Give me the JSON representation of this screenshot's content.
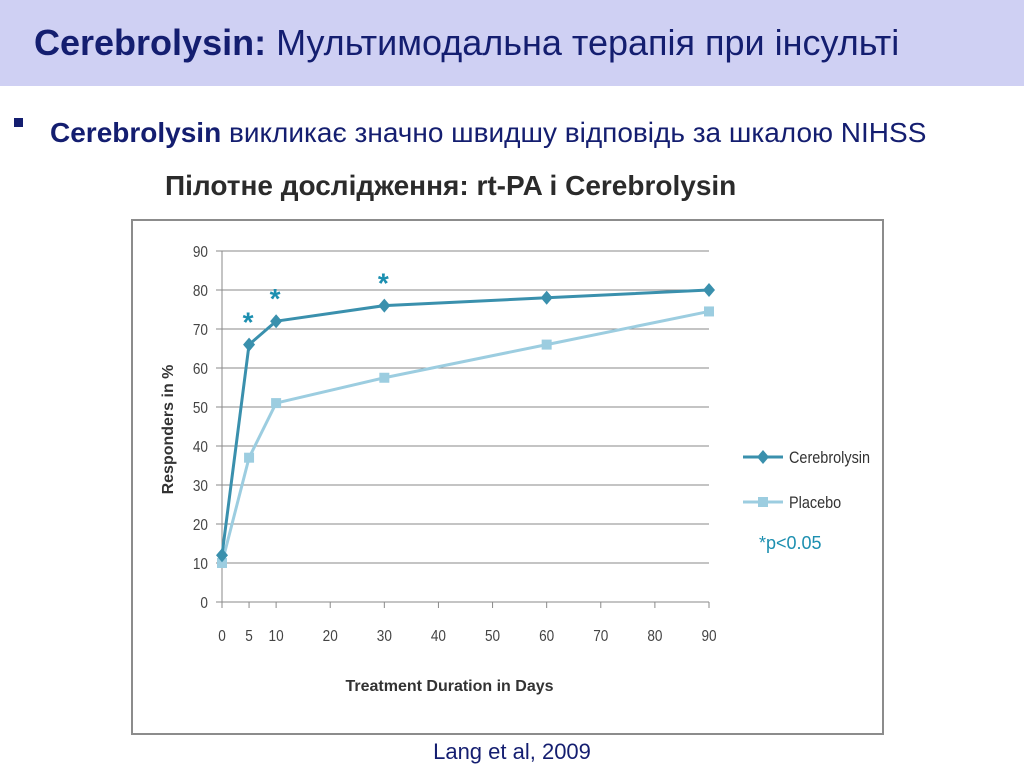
{
  "slide": {
    "title_bold": "Cerebrolysin:",
    "title_rest": " Мультимодальна терапія при інсульті",
    "bullet_bold": "Cerebrolysin",
    "bullet_rest": " викликає значно швидшу відповідь за шкалою NIHSS",
    "subtitle": "Пілотне дослідження: rt-PA і Cerebrolysin",
    "citation": "Lang et al, 2009"
  },
  "colors": {
    "title_bg": "#cfd0f3",
    "title_text": "#141e70",
    "cerebrolysin": "#3a90ad",
    "placebo": "#9ccde0",
    "asterisk": "#1c8fb0"
  },
  "chart_data": {
    "type": "line",
    "xlabel": "Treatment Duration in Days",
    "ylabel": "Responders in %",
    "xlim": [
      0,
      90
    ],
    "ylim": [
      0,
      90
    ],
    "x_ticks": [
      0,
      5,
      10,
      20,
      30,
      40,
      50,
      60,
      70,
      80,
      90
    ],
    "y_ticks": [
      0,
      10,
      20,
      30,
      40,
      50,
      60,
      70,
      80,
      90
    ],
    "grid": "horizontal",
    "legend_position": "right",
    "series": [
      {
        "name": "Cerebrolysin",
        "marker": "diamond",
        "x": [
          0,
          5,
          10,
          30,
          60,
          90
        ],
        "y": [
          12,
          66,
          72,
          76,
          78,
          80
        ]
      },
      {
        "name": "Placebo",
        "marker": "square",
        "x": [
          0,
          5,
          10,
          30,
          60,
          90
        ],
        "y": [
          10,
          37,
          51,
          57.5,
          66,
          74.5
        ]
      }
    ],
    "significance_marks": [
      {
        "x": 5,
        "label": "*"
      },
      {
        "x": 10,
        "label": "*"
      },
      {
        "x": 30,
        "label": "*"
      }
    ],
    "annotation": "*p<0.05"
  }
}
